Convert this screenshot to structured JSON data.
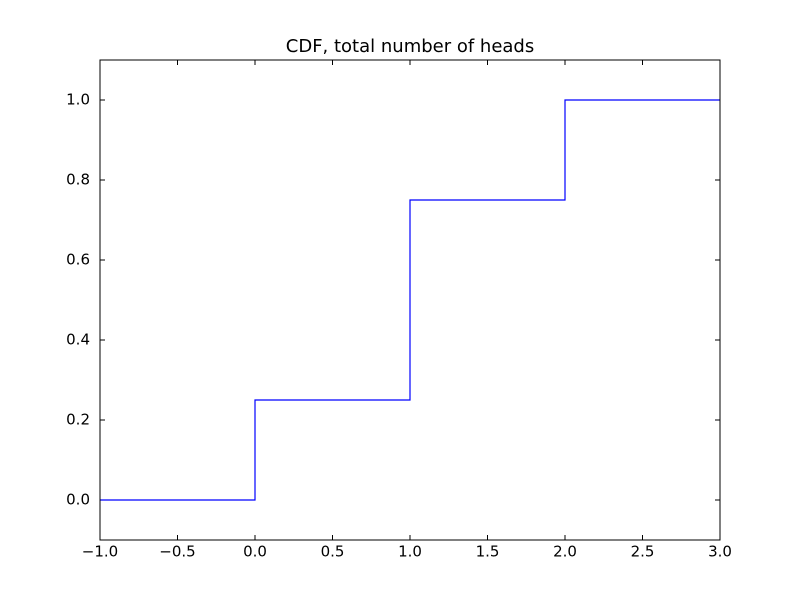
{
  "chart_data": {
    "type": "line",
    "title": "CDF, total number of heads",
    "x": [
      -1,
      0,
      0,
      1,
      1,
      2,
      2,
      3
    ],
    "series": [
      {
        "color": "#0000ff",
        "values": [
          0,
          0,
          0.25,
          0.25,
          0.75,
          0.75,
          1,
          1
        ]
      }
    ],
    "xlim": [
      -1,
      3
    ],
    "xticks": [
      {
        "value": -1,
        "label": "−1.0"
      },
      {
        "value": -0.5,
        "label": "−0.5"
      },
      {
        "value": 0,
        "label": "0.0"
      },
      0.5,
      {
        "value": 1,
        "label": "1.0"
      },
      1.5,
      {
        "value": 2,
        "label": "2.0"
      },
      2.5,
      {
        "value": 3,
        "label": "3.0"
      }
    ],
    "ylim": [
      -0.1,
      1.1
    ],
    "yticks": [
      {
        "value": 0,
        "label": "0.0"
      },
      0.2,
      0.4,
      0.6,
      0.8,
      {
        "value": 1,
        "label": "1.0"
      }
    ],
    "grid": false
  }
}
